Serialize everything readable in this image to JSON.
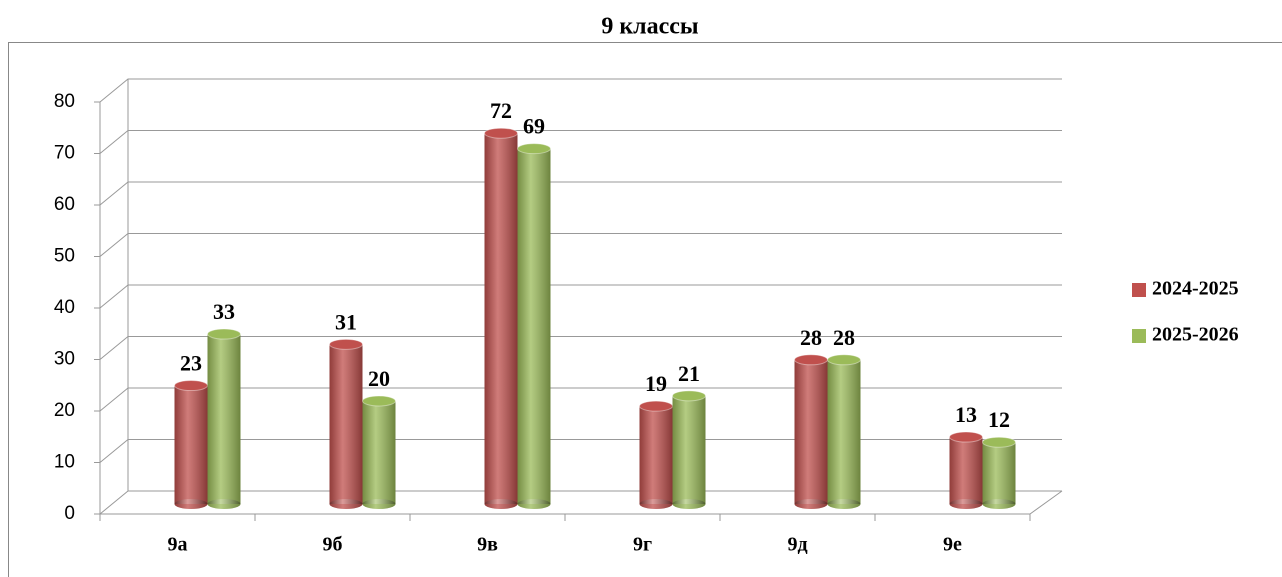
{
  "chart_data": {
    "type": "bar",
    "title": "9 классы",
    "categories": [
      "9а",
      "9б",
      "9в",
      "9г",
      "9д",
      "9е"
    ],
    "series": [
      {
        "name": "2024-2025",
        "color": "#c0504d",
        "values": [
          23,
          31,
          72,
          19,
          28,
          13
        ]
      },
      {
        "name": "2025-2026",
        "color": "#9bbb59",
        "values": [
          33,
          20,
          69,
          21,
          28,
          12
        ]
      }
    ],
    "ylim": [
      0,
      80
    ],
    "yticks": [
      0,
      10,
      20,
      30,
      40,
      50,
      60,
      70,
      80
    ],
    "grid": true,
    "legend": "right"
  }
}
